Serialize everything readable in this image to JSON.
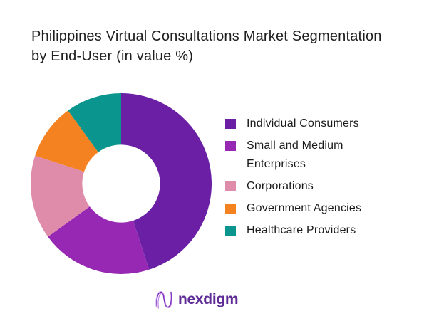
{
  "header": {
    "title_lines": [
      "Philippines Virtual Consultations Market Segmentation",
      "by End-User (in value %)"
    ]
  },
  "chart_data": {
    "type": "pie",
    "subtype": "donut",
    "title": "Philippines Virtual Consultations Market Segmentation by End-User (in value %)",
    "unit": "value %",
    "start_angle_deg": 0,
    "direction": "clockwise",
    "inner_radius_ratio": 0.43,
    "legend_position": "right",
    "data_labels": false,
    "segments": [
      {
        "label": "Individual Consumers",
        "value": 45,
        "color": "#6A1FA5"
      },
      {
        "label": "Small and Medium Enterprises",
        "value": 20,
        "color": "#9728B3"
      },
      {
        "label": "Corporations",
        "value": 15,
        "color": "#DE8CA9"
      },
      {
        "label": "Government Agencies",
        "value": 10,
        "color": "#F58220"
      },
      {
        "label": "Healthcare Providers",
        "value": 10,
        "color": "#0A968F"
      }
    ]
  },
  "branding": {
    "logo_text": "nexdigm",
    "logo_color": "#5E2B97"
  }
}
